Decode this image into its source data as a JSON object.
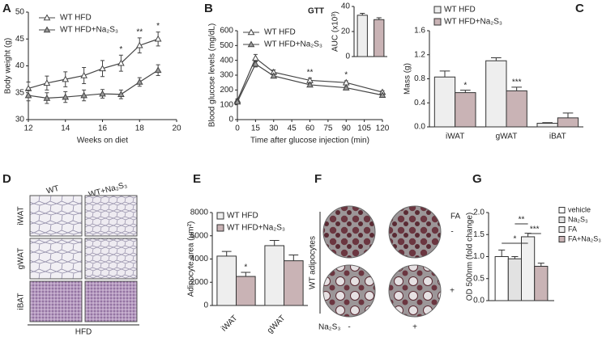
{
  "panel_labels": [
    "A",
    "B",
    "C",
    "D",
    "E",
    "F",
    "G"
  ],
  "chart_data": [
    {
      "type": "line",
      "x_label": "Weeks on diet",
      "y_label": "Body weight (g)",
      "x": [
        12,
        13,
        14,
        15,
        16,
        17,
        18,
        19
      ],
      "xlim": [
        12,
        20
      ],
      "xticks": [
        12,
        14,
        16,
        18,
        20
      ],
      "ylim": [
        30,
        50
      ],
      "yticks": [
        30,
        35,
        40,
        45,
        50
      ],
      "series": [
        {
          "name": "WT HFD",
          "color": "#444444",
          "marker_fill": "#ffffff",
          "values": [
            35.8,
            36.8,
            37.5,
            38.2,
            39.5,
            40.5,
            43.8,
            45.0
          ],
          "errors": [
            1.2,
            1.3,
            1.4,
            1.5,
            1.5,
            1.5,
            1.4,
            1.3
          ],
          "significance": [
            null,
            null,
            null,
            null,
            null,
            "*",
            "**",
            "*"
          ]
        },
        {
          "name": "WT HFD+Na₂S₃",
          "color": "#444444",
          "marker_fill": "#9a9a9a",
          "values": [
            34.5,
            34.0,
            34.2,
            34.5,
            34.8,
            34.7,
            37.0,
            39.2
          ],
          "errors": [
            1.0,
            1.0,
            1.0,
            1.0,
            0.8,
            0.8,
            0.8,
            1.0
          ]
        }
      ]
    },
    {
      "type": "line",
      "title": "GTT",
      "x_label": "Time after glucose injection (min)",
      "y_label": "Blood glucose levels (mg/dL)",
      "x": [
        0,
        15,
        30,
        60,
        90,
        120
      ],
      "xlim": [
        0,
        120
      ],
      "xticks": [
        0,
        15,
        30,
        45,
        60,
        75,
        90,
        105,
        120
      ],
      "ylim": [
        0,
        600
      ],
      "yticks": [
        0,
        100,
        200,
        300,
        400,
        500,
        600
      ],
      "series": [
        {
          "name": "WT HFD",
          "color": "#444444",
          "marker_fill": "#ffffff",
          "values": [
            130,
            415,
            320,
            265,
            250,
            185
          ],
          "errors": [
            10,
            25,
            15,
            15,
            12,
            10
          ],
          "significance": [
            null,
            null,
            null,
            "**",
            "*",
            null
          ]
        },
        {
          "name": "WT HFD+Na₂S₃",
          "color": "#444444",
          "marker_fill": "#9a9a9a",
          "values": [
            120,
            375,
            295,
            235,
            215,
            165
          ],
          "errors": [
            10,
            20,
            12,
            10,
            10,
            8
          ]
        }
      ]
    },
    {
      "type": "bar",
      "y_label": "AUC (x10³)",
      "categories": [
        null,
        null
      ],
      "ylim": [
        0,
        40
      ],
      "yticks": [
        0,
        20,
        40
      ],
      "series": [
        {
          "name": null,
          "color": "#eeeeee",
          "values": [
            33,
            null
          ],
          "errors": [
            1.5,
            null
          ]
        },
        {
          "name": null,
          "color": "#c9b3b5",
          "values": [
            null,
            29.5
          ],
          "errors": [
            null,
            1.5
          ]
        }
      ]
    },
    {
      "type": "bar",
      "y_label": "Mass (g)",
      "categories": [
        "iWAT",
        "gWAT",
        "iBAT"
      ],
      "ylim": [
        0,
        1.6
      ],
      "yticks": [
        {
          "value": 0,
          "label": "0.0"
        },
        0.4,
        0.8,
        1.2,
        1.6
      ],
      "series": [
        {
          "name": "WT HFD",
          "color": "#eeeeee",
          "values": [
            0.83,
            1.1,
            0.06
          ],
          "errors": [
            0.1,
            0.05,
            0.01
          ]
        },
        {
          "name": "WT HFD+Na₂S₃",
          "color": "#c9b3b5",
          "values": [
            0.57,
            0.6,
            0.15
          ],
          "errors": [
            0.04,
            0.06,
            0.08
          ],
          "significance": [
            "*",
            "***",
            null
          ]
        }
      ]
    },
    {
      "type": "bar",
      "y_label": "Adipocyte area (μm²)",
      "categories": [
        "iWAT",
        "gWAT"
      ],
      "ylim": [
        0,
        8000
      ],
      "yticks": [
        0,
        2000,
        4000,
        6000,
        8000
      ],
      "series": [
        {
          "name": "WT HFD",
          "color": "#eeeeee",
          "values": [
            4250,
            5150
          ],
          "errors": [
            400,
            450
          ]
        },
        {
          "name": "WT HFD+Na₂S₃",
          "color": "#c9b3b5",
          "values": [
            2500,
            3850
          ],
          "errors": [
            350,
            500
          ],
          "significance": [
            "*",
            null
          ]
        }
      ]
    },
    {
      "type": "bar",
      "y_label": "OD 500nm (fold change)",
      "categories": [
        null
      ],
      "ylim": [
        0,
        2.0
      ],
      "yticks": [
        {
          "value": 0,
          "label": "0.0"
        },
        0.5,
        {
          "value": 1.0,
          "label": "1.0"
        },
        1.5,
        {
          "value": 2.0,
          "label": "2.0"
        }
      ],
      "series": [
        {
          "name": "vehicle",
          "color": "#ffffff",
          "values": [
            1.0
          ],
          "errors": [
            0.15
          ]
        },
        {
          "name": "Na₂S₃",
          "color": "#e2e2e2",
          "values": [
            0.95
          ],
          "errors": [
            0.05
          ]
        },
        {
          "name": "FA",
          "color": "#f0f0f0",
          "values": [
            1.45
          ],
          "errors": [
            0.08
          ]
        },
        {
          "name": "FA+Na₂S₃",
          "color": "#c9b3b5",
          "values": [
            0.78
          ],
          "errors": [
            0.07
          ]
        }
      ],
      "comparisons": [
        {
          "from": 0,
          "to": 2,
          "label": "*"
        },
        {
          "from": 2,
          "to": 3,
          "label": "***"
        },
        {
          "from": 1,
          "to": 2,
          "label": "**"
        }
      ]
    }
  ],
  "histology": {
    "columns": [
      "WT",
      "WT+Na₂S₃"
    ],
    "rows": [
      "iWAT",
      "gWAT",
      "iBAT"
    ],
    "footer": "HFD"
  },
  "adipocyte_images": {
    "side_label": "WT adipocytes",
    "row_header": "FA",
    "rows": [
      "-",
      "+"
    ],
    "column_header": "Na₂S₃",
    "columns": [
      "-",
      "+"
    ]
  }
}
